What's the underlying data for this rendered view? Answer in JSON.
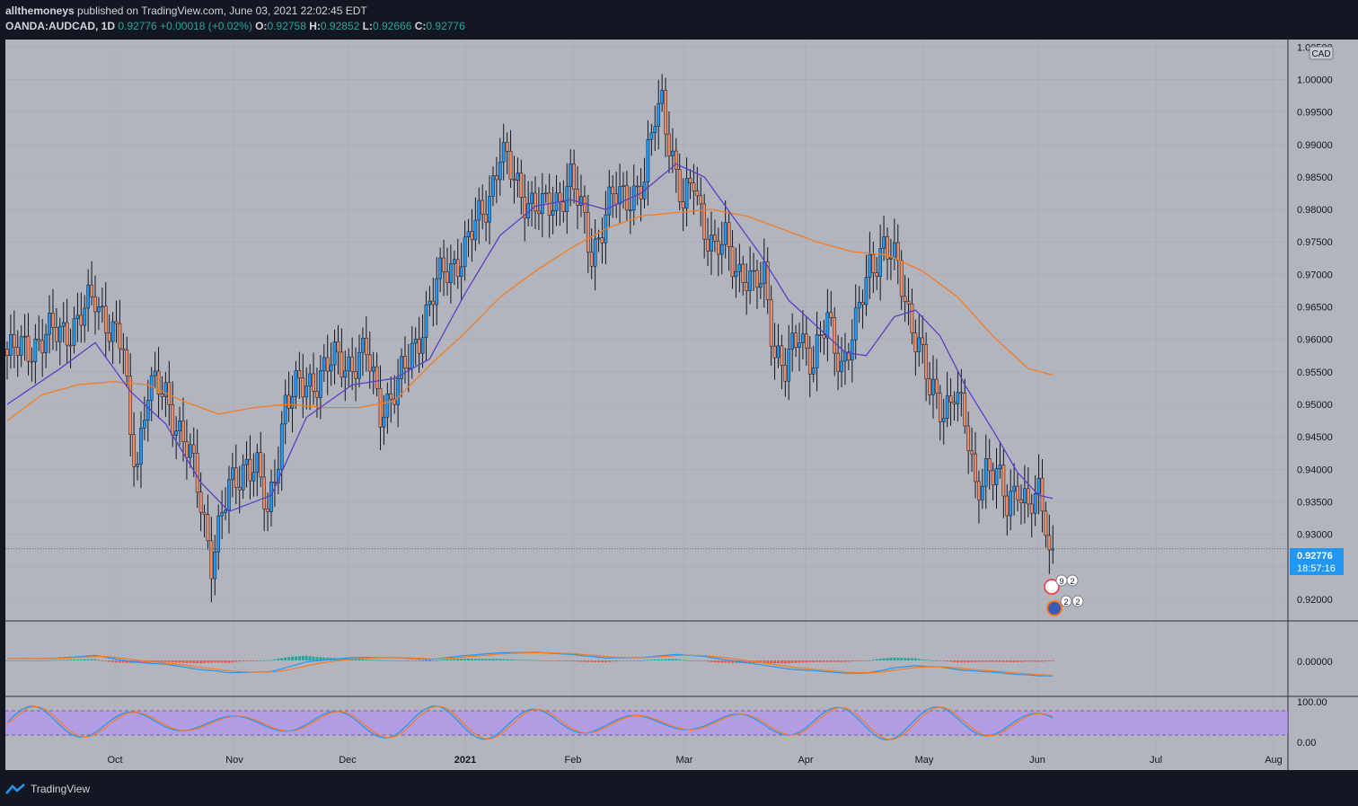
{
  "header": {
    "author": "allthemoneys",
    "published_text": "published on TradingView.com, June 03, 2021 22:02:45 EDT",
    "symbol": "OANDA:AUDCAD, 1D",
    "last": "0.92776",
    "change": "+0.00018 (+0.02%)",
    "o_label": "O:",
    "o_value": "0.92758",
    "h_label": "H:",
    "h_value": "0.92852",
    "l_label": "L:",
    "l_value": "0.92666",
    "c_label": "C:",
    "c_value": "0.92776"
  },
  "currency_badge": "CAD",
  "price_badge": {
    "price": "0.92776",
    "countdown": "18:57:16"
  },
  "event_badges": [
    "9",
    "2",
    "2",
    "2"
  ],
  "footer": {
    "brand": "TradingView"
  },
  "colors": {
    "background": "#131722",
    "pane": "#b2b5be",
    "up": "#2196f3",
    "down": "#ef8a62",
    "sma_fast": "#5b3fc4",
    "sma_slow": "#f57c1f",
    "macd_line": "#2196f3",
    "signal_line": "#f57c1f",
    "stoch_band": "#b388ff"
  },
  "chart_data": {
    "type": "candlestick",
    "title": "OANDA:AUDCAD, 1D",
    "y_axis_ticks": [
      "1.00500",
      "1.00000",
      "0.99500",
      "0.99000",
      "0.98500",
      "0.98000",
      "0.97500",
      "0.97000",
      "0.96500",
      "0.96000",
      "0.95500",
      "0.95000",
      "0.94500",
      "0.94000",
      "0.93500",
      "0.93000",
      "0.92500",
      "0.92000"
    ],
    "ylim": [
      0.9175,
      1.0067
    ],
    "x_axis_ticks": [
      "Oct",
      "Nov",
      "Dec",
      "2021",
      "Feb",
      "Mar",
      "Apr",
      "May",
      "Jun",
      "Jul",
      "Aug"
    ],
    "current_price": 0.92776,
    "price_path": [
      [
        0,
        0.9575
      ],
      [
        20,
        0.9625
      ],
      [
        25,
        0.9665
      ],
      [
        33,
        0.958
      ],
      [
        35,
        0.945
      ],
      [
        37,
        0.942
      ],
      [
        40,
        0.9525
      ],
      [
        45,
        0.9515
      ],
      [
        49,
        0.946
      ],
      [
        52,
        0.9415
      ],
      [
        55,
        0.935
      ],
      [
        58,
        0.9265
      ],
      [
        63,
        0.9365
      ],
      [
        68,
        0.9415
      ],
      [
        71,
        0.9395
      ],
      [
        74,
        0.9325
      ],
      [
        79,
        0.9505
      ],
      [
        86,
        0.9535
      ],
      [
        93,
        0.9565
      ],
      [
        98,
        0.9565
      ],
      [
        102,
        0.9575
      ],
      [
        106,
        0.9495
      ],
      [
        111,
        0.9525
      ],
      [
        118,
        0.9625
      ],
      [
        124,
        0.9705
      ],
      [
        130,
        0.9735
      ],
      [
        137,
        0.9825
      ],
      [
        140,
        0.9885
      ],
      [
        144,
        0.9845
      ],
      [
        148,
        0.9815
      ],
      [
        152,
        0.9795
      ],
      [
        156,
        0.9815
      ],
      [
        160,
        0.9845
      ],
      [
        163,
        0.9795
      ],
      [
        166,
        0.9735
      ],
      [
        169,
        0.9775
      ],
      [
        172,
        0.9815
      ],
      [
        176,
        0.9825
      ],
      [
        181,
        0.9835
      ],
      [
        184,
        0.9945
      ],
      [
        186,
        0.9975
      ],
      [
        190,
        0.9845
      ],
      [
        192,
        0.9795
      ],
      [
        195,
        0.9855
      ],
      [
        198,
        0.9775
      ],
      [
        201,
        0.9725
      ],
      [
        204,
        0.9755
      ],
      [
        208,
        0.9705
      ],
      [
        212,
        0.9675
      ],
      [
        215,
        0.9705
      ],
      [
        218,
        0.9585
      ],
      [
        221,
        0.9545
      ],
      [
        225,
        0.9615
      ],
      [
        229,
        0.9565
      ],
      [
        233,
        0.9625
      ],
      [
        237,
        0.9565
      ],
      [
        241,
        0.9615
      ],
      [
        245,
        0.9715
      ],
      [
        249,
        0.9745
      ],
      [
        253,
        0.9705
      ],
      [
        256,
        0.9645
      ],
      [
        259,
        0.9595
      ],
      [
        262,
        0.9515
      ],
      [
        266,
        0.9495
      ],
      [
        269,
        0.9525
      ],
      [
        272,
        0.9465
      ],
      [
        275,
        0.9375
      ],
      [
        278,
        0.9405
      ],
      [
        281,
        0.9385
      ],
      [
        284,
        0.9345
      ],
      [
        287,
        0.9385
      ],
      [
        290,
        0.9335
      ],
      [
        293,
        0.9355
      ],
      [
        295,
        0.9325
      ],
      [
        296,
        0.9285
      ],
      [
        297,
        0.92776
      ]
    ],
    "sma_fast": [
      [
        0,
        0.95
      ],
      [
        15,
        0.9555
      ],
      [
        25,
        0.9595
      ],
      [
        35,
        0.952
      ],
      [
        45,
        0.947
      ],
      [
        55,
        0.938
      ],
      [
        63,
        0.9335
      ],
      [
        75,
        0.936
      ],
      [
        85,
        0.948
      ],
      [
        98,
        0.953
      ],
      [
        110,
        0.954
      ],
      [
        120,
        0.957
      ],
      [
        130,
        0.967
      ],
      [
        140,
        0.976
      ],
      [
        150,
        0.9805
      ],
      [
        160,
        0.9815
      ],
      [
        170,
        0.98
      ],
      [
        180,
        0.9825
      ],
      [
        190,
        0.987
      ],
      [
        198,
        0.985
      ],
      [
        206,
        0.979
      ],
      [
        214,
        0.973
      ],
      [
        222,
        0.966
      ],
      [
        230,
        0.962
      ],
      [
        238,
        0.958
      ],
      [
        244,
        0.9575
      ],
      [
        252,
        0.9635
      ],
      [
        258,
        0.9645
      ],
      [
        265,
        0.9605
      ],
      [
        272,
        0.953
      ],
      [
        280,
        0.946
      ],
      [
        287,
        0.9395
      ],
      [
        293,
        0.936
      ],
      [
        297,
        0.9355
      ]
    ],
    "sma_slow": [
      [
        0,
        0.9475
      ],
      [
        10,
        0.9515
      ],
      [
        20,
        0.953
      ],
      [
        30,
        0.9535
      ],
      [
        40,
        0.953
      ],
      [
        50,
        0.9505
      ],
      [
        60,
        0.9485
      ],
      [
        70,
        0.9495
      ],
      [
        80,
        0.95
      ],
      [
        90,
        0.9495
      ],
      [
        100,
        0.9495
      ],
      [
        110,
        0.9505
      ],
      [
        120,
        0.956
      ],
      [
        130,
        0.961
      ],
      [
        140,
        0.9665
      ],
      [
        150,
        0.9705
      ],
      [
        160,
        0.974
      ],
      [
        170,
        0.977
      ],
      [
        180,
        0.979
      ],
      [
        190,
        0.9795
      ],
      [
        200,
        0.98
      ],
      [
        210,
        0.979
      ],
      [
        220,
        0.977
      ],
      [
        230,
        0.975
      ],
      [
        240,
        0.9735
      ],
      [
        250,
        0.973
      ],
      [
        260,
        0.9705
      ],
      [
        270,
        0.9665
      ],
      [
        280,
        0.9605
      ],
      [
        290,
        0.9555
      ],
      [
        297,
        0.9545
      ]
    ],
    "macd_pane": {
      "y_axis_ticks": [
        "0.00000"
      ]
    },
    "stoch_pane": {
      "y_axis_ticks": [
        "100.00",
        "0.00"
      ],
      "bands": [
        80,
        20
      ]
    }
  }
}
